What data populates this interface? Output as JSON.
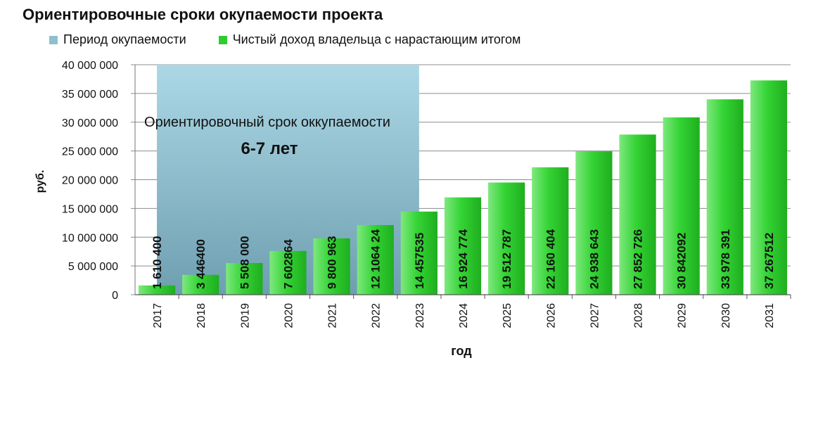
{
  "title": "Ориентировочные сроки окупаемости проекта",
  "legend": {
    "period_label": "Период  окупаемости",
    "income_label": "Чистый доход  владельца  с нарастающим итогом"
  },
  "annotation": {
    "line1": "Ориентировочный срок оккупаемости",
    "line2": "6-7 лет"
  },
  "colors": {
    "bar": "#2fc92f",
    "period": "#8fbfcf"
  },
  "chart_data": {
    "type": "bar",
    "xlabel": "год",
    "ylabel": "руб.",
    "ylim": [
      0,
      40000000
    ],
    "yticks": [
      0,
      5000000,
      10000000,
      15000000,
      20000000,
      25000000,
      30000000,
      35000000,
      40000000
    ],
    "ytick_labels": [
      "0",
      "5 000 000",
      "10 000 000",
      "15 000 000",
      "20 000 000",
      "25 000 000",
      "30 000 000",
      "35 000 000",
      "40 000 000"
    ],
    "grid": true,
    "legend_position": "top",
    "categories": [
      "2017",
      "2018",
      "2019",
      "2020",
      "2021",
      "2022",
      "2023",
      "2024",
      "2025",
      "2026",
      "2027",
      "2028",
      "2029",
      "2030",
      "2031"
    ],
    "series": [
      {
        "name": "Чистый доход  владельца  с нарастающим итогом",
        "values": [
          1610400,
          3446400,
          5508000,
          7602864,
          9800963,
          12106424,
          14457535,
          16924774,
          19512787,
          22160404,
          24938643,
          27852726,
          30842092,
          33978391,
          37267512
        ],
        "labels": [
          "1 610 400",
          "3 446400",
          "5 508 000",
          "7 602864",
          "9 800 963",
          "12 1064 24",
          "14 457535",
          "16 924 774",
          "19 512 787",
          "22 160 404",
          "24 938 643",
          "27 852 726",
          "30 842092",
          "33 978 391",
          "37 267512"
        ]
      }
    ],
    "payback_period": {
      "name": "Период  окупаемости",
      "from_category": "2017",
      "to_category": "2023",
      "value": 40000000
    }
  }
}
